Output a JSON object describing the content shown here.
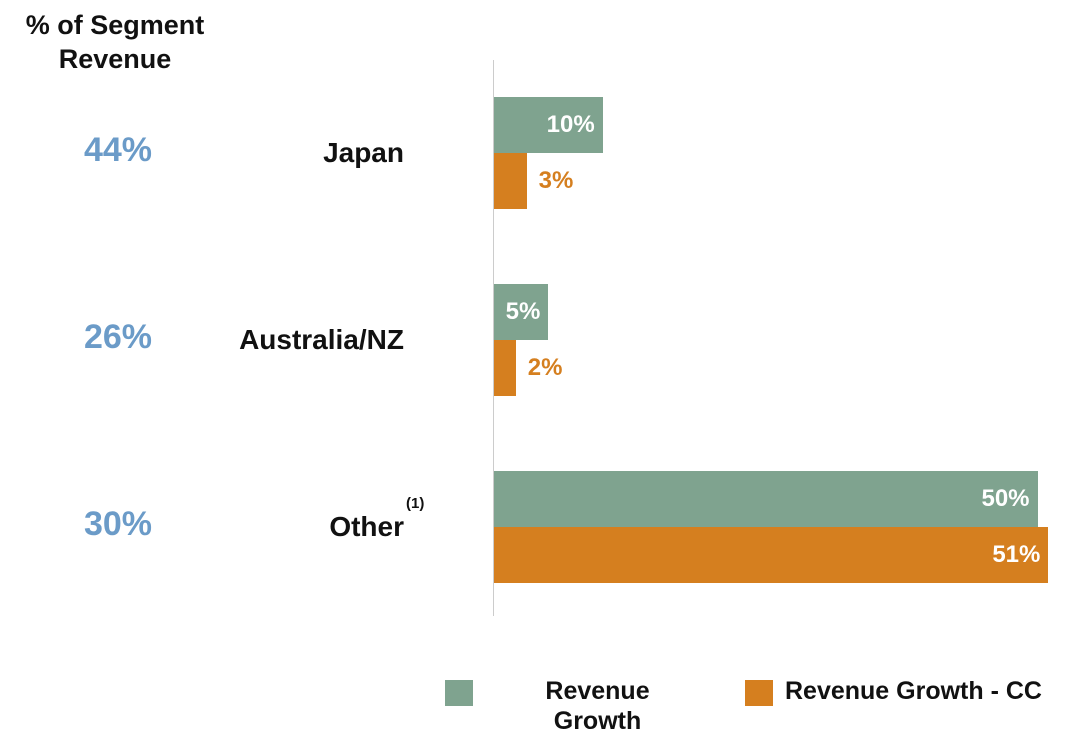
{
  "chart_data": {
    "type": "bar",
    "orientation": "horizontal",
    "share_title": "% of Segment Revenue",
    "segment_share": [
      "44%",
      "26%",
      "30%"
    ],
    "categories": [
      "Japan",
      "Australia/NZ",
      "Other"
    ],
    "category_notes": [
      null,
      null,
      "(1)"
    ],
    "series": [
      {
        "name": "Revenue Growth",
        "color": "#7fa38f",
        "values": [
          10,
          5,
          50
        ],
        "value_labels": [
          "10%",
          "5%",
          "50%"
        ]
      },
      {
        "name": "Revenue Growth - CC",
        "color": "#d57f1f",
        "values": [
          3,
          2,
          51
        ],
        "value_labels": [
          "3%",
          "2%",
          "51%"
        ]
      }
    ],
    "xlim": [
      0,
      54
    ]
  }
}
